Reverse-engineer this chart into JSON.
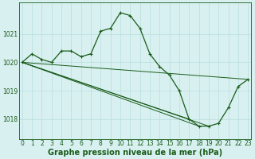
{
  "title": "Graphe pression niveau de la mer (hPa)",
  "background_color": "#d8f0f0",
  "grid_color": "#b8dede",
  "line_color": "#1a5c1a",
  "series1": [
    1020.0,
    1020.3,
    1020.1,
    1020.0,
    1020.4,
    1020.4,
    1020.2,
    1020.3,
    1021.1,
    1021.2,
    1021.75,
    1021.65,
    1021.2,
    1020.3,
    1019.85,
    1019.55,
    1019.0,
    1018.0,
    1017.75,
    1017.75,
    1017.85,
    1018.4,
    1019.15,
    1019.4
  ],
  "fan_lines": [
    {
      "x": [
        0,
        23
      ],
      "y": [
        1020.0,
        1019.4
      ]
    },
    {
      "x": [
        0,
        19
      ],
      "y": [
        1020.0,
        1017.75
      ]
    },
    {
      "x": [
        0,
        18
      ],
      "y": [
        1020.0,
        1017.75
      ]
    },
    {
      "x": [
        0,
        17
      ],
      "y": [
        1020.0,
        1018.0
      ]
    }
  ],
  "ylim": [
    1017.3,
    1022.1
  ],
  "yticks": [
    1018,
    1019,
    1020,
    1021
  ],
  "xlim": [
    -0.3,
    23.3
  ],
  "x_labels": [
    "0",
    "1",
    "2",
    "3",
    "4",
    "5",
    "6",
    "7",
    "8",
    "9",
    "10",
    "11",
    "12",
    "13",
    "14",
    "15",
    "16",
    "17",
    "18",
    "19",
    "20",
    "21",
    "22",
    "23"
  ],
  "title_fontsize": 7.0,
  "tick_fontsize": 5.5,
  "label_color": "#1a5c1a"
}
